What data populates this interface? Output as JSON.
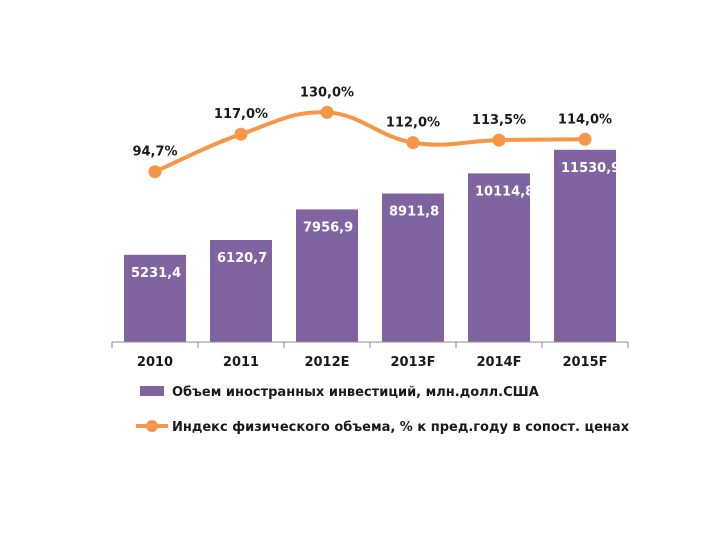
{
  "chart_data": {
    "type": "bar",
    "categories": [
      "2010",
      "2011",
      "2012E",
      "2013F",
      "2014F",
      "2015F"
    ],
    "series": [
      {
        "name": "Объем иностранных инвестиций, млн.долл.США",
        "type": "bar",
        "values": [
          5231.4,
          6120.7,
          7956.9,
          8911.8,
          10114.8,
          11530.9
        ],
        "labels": [
          "5231,4",
          "6120,7",
          "7956,9",
          "8911,8",
          "10114,8",
          "11530,9"
        ],
        "color": "#8064a2"
      },
      {
        "name": "Индекс физического объема, % к пред.году в сопост. ценах",
        "type": "line",
        "values": [
          94.7,
          117.0,
          130.0,
          112.0,
          113.5,
          114.0
        ],
        "labels": [
          "94,7%",
          "117,0%",
          "130,0%",
          "112,0%",
          "113,5%",
          "114,0%"
        ],
        "color": "#f79646"
      }
    ],
    "ylim_bars": [
      0,
      12000
    ],
    "ylim_line": [
      60,
      135
    ],
    "grid": false,
    "legend_position": "bottom"
  }
}
